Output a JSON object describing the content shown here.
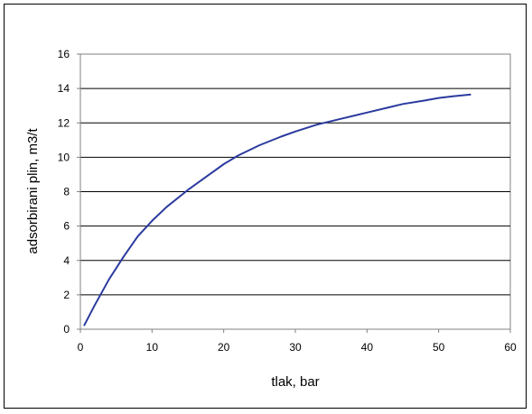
{
  "chart_data": {
    "type": "line",
    "title": "",
    "xlabel": "tlak, bar",
    "ylabel": "adsorbirani plin, m3/t",
    "xlim": [
      0,
      60
    ],
    "ylim": [
      0,
      16
    ],
    "x_ticks": [
      "0",
      "10",
      "20",
      "30",
      "40",
      "50",
      "60"
    ],
    "y_ticks": [
      "0",
      "2",
      "4",
      "6",
      "8",
      "10",
      "12",
      "14",
      "16"
    ],
    "grid": "horizontal",
    "legend": "none",
    "series": [
      {
        "color": "#2b3a9e",
        "x": [
          0.5,
          2,
          4,
          6,
          8,
          10,
          12,
          15,
          18,
          20,
          22,
          25,
          28,
          30,
          33,
          35,
          38,
          40,
          43,
          45,
          48,
          50,
          52,
          54.5
        ],
        "y": [
          0.2,
          1.4,
          2.9,
          4.2,
          5.4,
          6.3,
          7.1,
          8.1,
          9.0,
          9.6,
          10.1,
          10.7,
          11.2,
          11.5,
          11.9,
          12.1,
          12.4,
          12.6,
          12.9,
          13.1,
          13.3,
          13.45,
          13.55,
          13.65
        ]
      }
    ]
  }
}
